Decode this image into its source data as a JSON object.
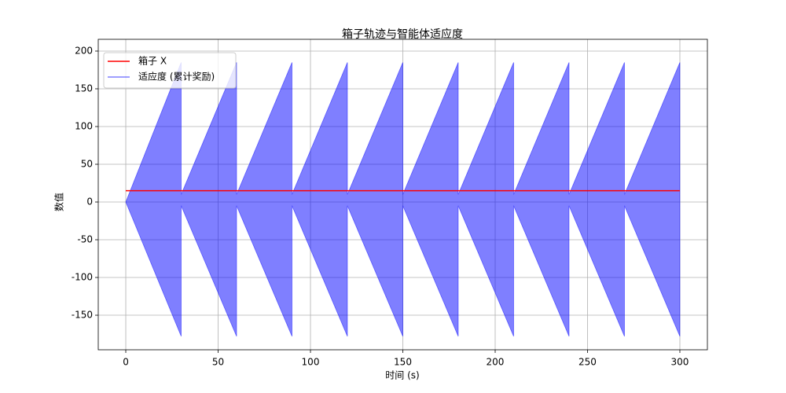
{
  "chart_data": {
    "type": "line",
    "title": "箱子轨迹与智能体适应度",
    "xlabel": "时间 (s)",
    "ylabel": "数值",
    "xlim": [
      -14.9,
      314.9
    ],
    "ylim": [
      -195.8,
      215.6
    ],
    "xticks": [
      0,
      50,
      100,
      150,
      200,
      250,
      300
    ],
    "yticks": [
      -150,
      -100,
      -50,
      0,
      50,
      100,
      150,
      200
    ],
    "grid": true,
    "legend": "upper-left",
    "series": [
      {
        "name": "箱子 X",
        "color": "#ff0000",
        "x": [
          0,
          300
        ],
        "values": [
          15,
          15
        ]
      },
      {
        "name": "适应度 (累计奖励)",
        "color": "#0000ff",
        "x": [
          0,
          30,
          30,
          60,
          60,
          90,
          90,
          120,
          120,
          150,
          150,
          180,
          180,
          210,
          210,
          240,
          240,
          270,
          270,
          300
        ],
        "high": [
          0,
          185,
          10,
          185,
          10,
          185,
          10,
          185,
          10,
          185,
          10,
          185,
          10,
          185,
          10,
          185,
          10,
          185,
          10,
          185
        ],
        "low": [
          0,
          -178,
          -5,
          -178,
          -5,
          -178,
          -5,
          -178,
          -5,
          -178,
          -5,
          -178,
          -5,
          -178,
          -5,
          -178,
          -5,
          -178,
          -5,
          -178
        ]
      }
    ]
  }
}
